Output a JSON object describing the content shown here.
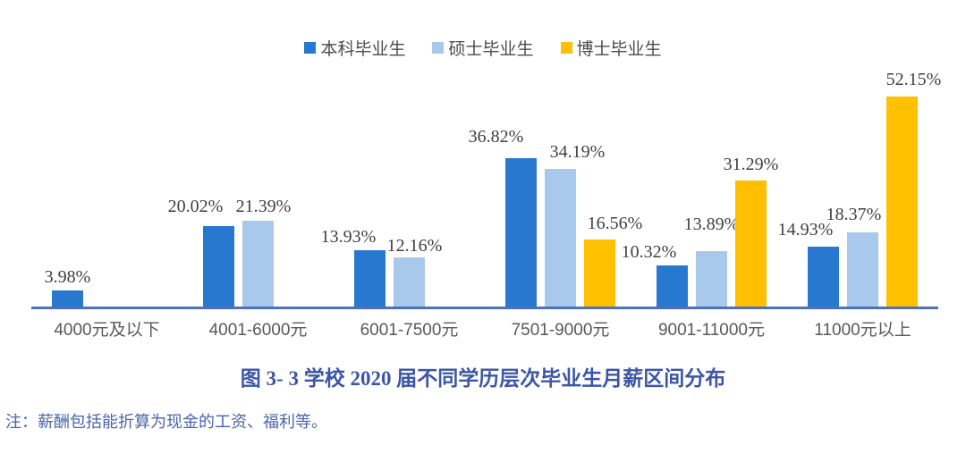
{
  "page": {
    "title": "图 3- 3  学校 2020 届不同学历层次毕业生月薪区间分布",
    "note": "注：薪酬包括能折算为现金的工资、福利等。"
  },
  "chart_data": {
    "type": "bar",
    "title": "图 3- 3  学校 2020 届不同学历层次毕业生月薪区间分布",
    "categories": [
      "4000元及以下",
      "4001-6000元",
      "6001-7500元",
      "7501-9000元",
      "9001-11000元",
      "11000元以上"
    ],
    "series": [
      {
        "name": "本科毕业生",
        "color": "#2878D0",
        "values": [
          3.98,
          20.02,
          13.93,
          36.82,
          10.32,
          14.93
        ]
      },
      {
        "name": "硕士毕业生",
        "color": "#A9C9EC",
        "values": [
          null,
          21.39,
          12.16,
          34.19,
          13.89,
          18.37
        ]
      },
      {
        "name": "博士毕业生",
        "color": "#FFC000",
        "values": [
          null,
          null,
          null,
          16.56,
          31.29,
          52.15
        ]
      }
    ],
    "value_suffix": "%",
    "data_labels": true,
    "ylim": [
      0,
      55
    ],
    "legend_position": "top",
    "grid": false
  },
  "colors": {
    "axis_line": "#4F6FC0",
    "data_label_text": "#3f3f3f",
    "axis_text": "#595959",
    "legend_text": "#4d4d4d",
    "title_text": "#3B56A8",
    "note_text": "#4A63AE",
    "background": "#ffffff"
  }
}
